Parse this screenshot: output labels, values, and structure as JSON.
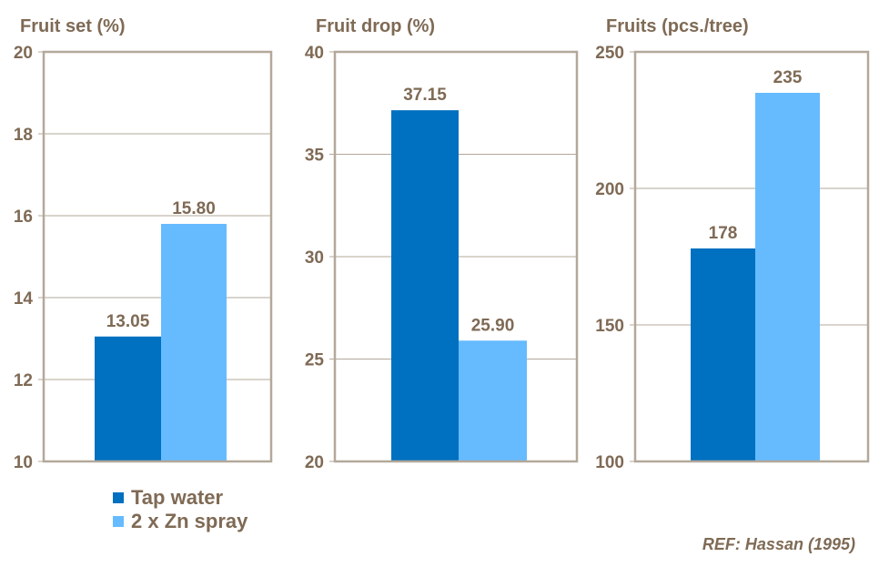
{
  "chart_data": [
    {
      "type": "bar",
      "title": "Fruit set (%)",
      "categories": [
        "Tap water",
        "2 x Zn spray"
      ],
      "values": [
        13.05,
        15.8
      ],
      "labels": [
        "13.05",
        "15.80"
      ],
      "ylim": [
        10,
        20
      ],
      "ticks": [
        10,
        12,
        14,
        16,
        18,
        20
      ],
      "grid": true
    },
    {
      "type": "bar",
      "title": "Fruit drop (%)",
      "categories": [
        "Tap water",
        "2 x Zn spray"
      ],
      "values": [
        37.15,
        25.9
      ],
      "labels": [
        "37.15",
        "25.90"
      ],
      "ylim": [
        20,
        40
      ],
      "ticks": [
        20,
        25,
        30,
        35,
        40
      ],
      "grid": true
    },
    {
      "type": "bar",
      "title": "Fruits (pcs./tree)",
      "categories": [
        "Tap water",
        "2 x Zn spray"
      ],
      "values": [
        178,
        235
      ],
      "labels": [
        "178",
        "235"
      ],
      "ylim": [
        100,
        250
      ],
      "ticks": [
        100,
        150,
        200,
        250
      ],
      "grid": true
    }
  ],
  "legend": {
    "items": [
      "Tap water",
      "2 x Zn spray"
    ],
    "colors": [
      "#0070c0",
      "#66bbff"
    ]
  },
  "reference": "REF: Hassan (1995)"
}
